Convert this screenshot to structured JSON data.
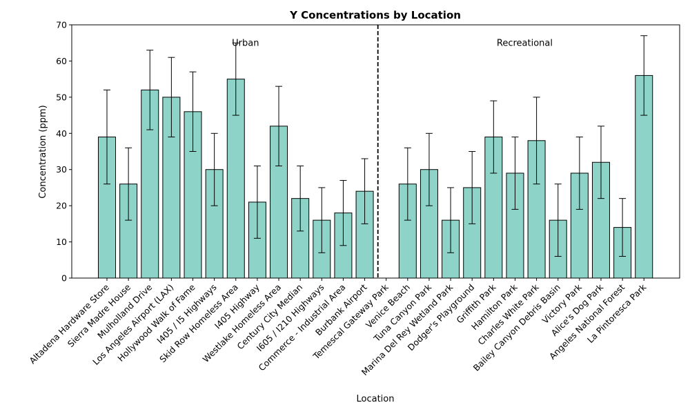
{
  "chart_data": {
    "type": "bar",
    "title": "Y Concentrations by Location",
    "xlabel": "Location",
    "ylabel": "Concentration (ppm)",
    "ylim": [
      0,
      70
    ],
    "yticks": [
      0,
      10,
      20,
      30,
      40,
      50,
      60,
      70
    ],
    "grid": false,
    "bar_color": "#8dd3c7",
    "bar_edge_color": "#000000",
    "categories": [
      "Altadena Hardware Store",
      "Sierra Madre House",
      "Mulholland Drive",
      "Los Angeles Airport (LAX)",
      "Hollywood Walk of Fame",
      "I405 / I5 Highways",
      "Skid Row Homeless Area",
      "I405 Highway",
      "Westlake Homeless Area",
      "Century City Median",
      "I605 / I210 Highways",
      "Commerce - Industrial Area",
      "Burbank Airport",
      "Temescal Gateway Park",
      "Venice Beach",
      "Tuna Canyon Park",
      "Marina Del Rey Wetland Park",
      "Dodger's Playground",
      "Griffith Park",
      "Hamilton Park",
      "Charles White Park",
      "Bailey Canyon Debris Basin",
      "Victory Park",
      "Alice's Dog Park",
      "Angeles National Forest",
      "La Pintoresca Park"
    ],
    "values": [
      39,
      26,
      52,
      50,
      46,
      30,
      55,
      21,
      42,
      22,
      16,
      18,
      24,
      null,
      26,
      30,
      16,
      25,
      39,
      29,
      38,
      16,
      29,
      32,
      14,
      56
    ],
    "error_low": [
      26,
      16,
      41,
      39,
      35,
      20,
      45,
      11,
      31,
      13,
      7,
      9,
      15,
      null,
      16,
      20,
      7,
      15,
      29,
      19,
      26,
      6,
      19,
      22,
      6,
      45
    ],
    "error_high": [
      52,
      36,
      63,
      61,
      57,
      40,
      65,
      31,
      53,
      31,
      25,
      27,
      33,
      null,
      36,
      40,
      25,
      35,
      49,
      39,
      50,
      26,
      39,
      42,
      22,
      67
    ],
    "divider_after_category": "Temescal Gateway Park",
    "annotations": [
      {
        "text": "Urban",
        "x_category": "Skid Row Homeless Area",
        "y": 65
      },
      {
        "text": "Recreational",
        "x_category": "Hamilton Park",
        "y": 65
      }
    ]
  }
}
